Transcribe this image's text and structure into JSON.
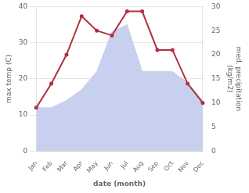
{
  "chart_data": {
    "type": "line",
    "xlabel": "date (month)",
    "ylabel": "max temp (C)",
    "y2label": "med. precipitation\n(kg/m2)",
    "categories": [
      "Jan",
      "Feb",
      "Mar",
      "Apr",
      "May",
      "Jun",
      "Jul",
      "Aug",
      "Sep",
      "Oct",
      "Nov",
      "Dec"
    ],
    "series": [
      {
        "type": "area",
        "color": "#c8d0f0",
        "values": [
          12,
          12,
          14,
          17,
          22,
          33,
          35,
          22,
          22,
          22,
          19,
          14
        ]
      },
      {
        "type": "line",
        "color": "#b03040",
        "axis": "y2",
        "values": [
          9,
          14,
          20,
          28,
          25,
          24,
          29,
          29,
          21,
          21,
          14,
          10
        ]
      }
    ],
    "ylim": [
      0,
      40
    ],
    "yticks": [
      0,
      10,
      20,
      30,
      40
    ],
    "y2lim": [
      0,
      30
    ],
    "y2ticks": [
      0,
      5,
      10,
      15,
      20,
      25,
      30
    ],
    "grid": true
  }
}
